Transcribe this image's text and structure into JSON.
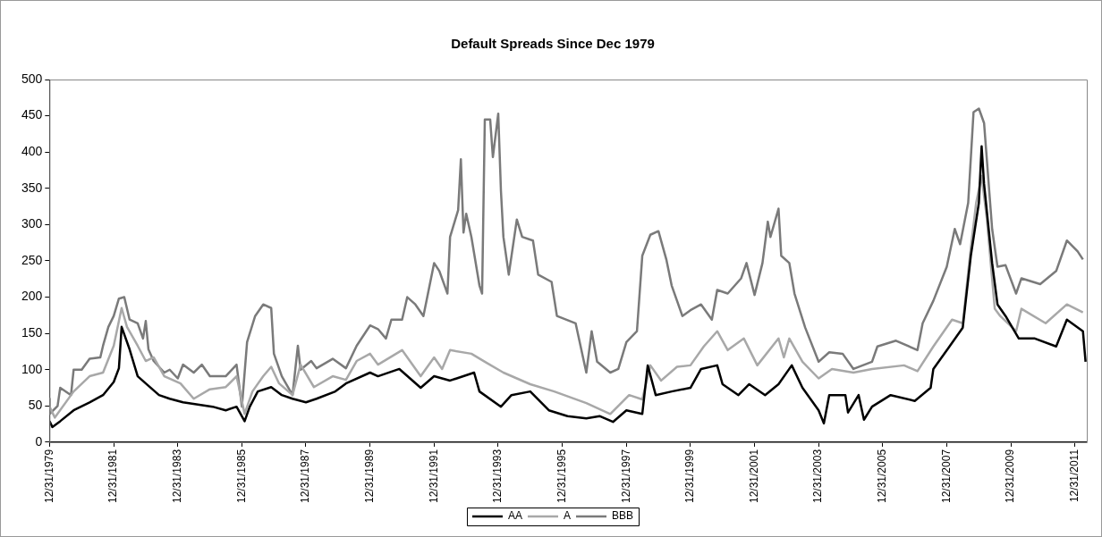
{
  "chart_data": {
    "type": "line",
    "title": "Default Spreads Since Dec 1979",
    "xlim": [
      "1979-12-31",
      "2012-05-15"
    ],
    "xticks": [
      {
        "value": "1979-12-31",
        "label": "12/31/1979"
      },
      {
        "value": "1981-12-31",
        "label": "12/31/1981"
      },
      {
        "value": "1983-12-31",
        "label": "12/31/1983"
      },
      {
        "value": "1985-12-31",
        "label": "12/31/1985"
      },
      {
        "value": "1987-12-31",
        "label": "12/31/1987"
      },
      {
        "value": "1989-12-31",
        "label": "12/31/1989"
      },
      {
        "value": "1991-12-31",
        "label": "12/31/1991"
      },
      {
        "value": "1993-12-31",
        "label": "12/31/1993"
      },
      {
        "value": "1995-12-31",
        "label": "12/31/1995"
      },
      {
        "value": "1997-12-31",
        "label": "12/31/1997"
      },
      {
        "value": "1999-12-31",
        "label": "12/31/1999"
      },
      {
        "value": "2001-12-31",
        "label": "12/31/2001"
      },
      {
        "value": "2003-12-31",
        "label": "12/31/2003"
      },
      {
        "value": "2005-12-31",
        "label": "12/31/2005"
      },
      {
        "value": "2007-12-31",
        "label": "12/31/2007"
      },
      {
        "value": "2009-12-31",
        "label": "12/31/2009"
      },
      {
        "value": "2011-12-31",
        "label": "12/31/2011"
      }
    ],
    "ylim": [
      0,
      500
    ],
    "yticks": [
      0,
      50,
      100,
      150,
      200,
      250,
      300,
      350,
      400,
      450,
      500
    ],
    "grid": false,
    "legend": "bottom",
    "marker": "none",
    "line_style": "solid",
    "series": [
      {
        "name": "AA",
        "color": "#000000",
        "x": [
          "1979-12-31",
          "1980-02",
          "1980-05",
          "1980-10",
          "1981-04",
          "1981-09",
          "1982-01",
          "1982-03",
          "1982-04",
          "1982-07",
          "1982-10",
          "1983-01",
          "1983-06",
          "1983-10",
          "1984-03",
          "1985-02",
          "1985-07",
          "1985-11",
          "1986-02",
          "1986-04",
          "1986-07",
          "1986-12",
          "1987-04",
          "1987-08",
          "1988-01",
          "1988-05",
          "1988-12",
          "1989-04",
          "1990-01",
          "1990-04",
          "1990-12",
          "1991-08",
          "1992-01",
          "1992-07",
          "1993-04",
          "1993-06",
          "1994-02",
          "1994-06",
          "1995-01",
          "1995-08",
          "1996-03",
          "1996-10",
          "1997-03",
          "1997-08",
          "1998-01",
          "1998-07",
          "1998-09",
          "1998-12",
          "1999-06",
          "2000-01",
          "2000-05",
          "2000-11",
          "2001-01",
          "2001-07",
          "2001-11",
          "2002-05",
          "2002-10",
          "2003-03",
          "2003-07",
          "2004-01",
          "2004-03",
          "2004-05",
          "2004-11",
          "2004-12",
          "2005-04",
          "2005-06",
          "2005-09",
          "2006-04",
          "2007-01",
          "2007-07",
          "2007-08",
          "2008-02",
          "2008-07",
          "2008-10",
          "2009-01",
          "2009-02",
          "2009-03",
          "2009-06",
          "2009-08",
          "2009-11",
          "2010-04",
          "2010-10",
          "2011-06",
          "2011-10",
          "2012-04",
          "2012-05"
        ],
        "values": [
          29,
          21,
          29,
          44,
          55,
          65,
          83,
          102,
          159,
          128,
          91,
          81,
          65,
          60,
          55,
          49,
          44,
          49,
          29,
          49,
          70,
          76,
          65,
          60,
          55,
          60,
          70,
          81,
          96,
          91,
          101,
          75,
          91,
          85,
          96,
          70,
          49,
          65,
          70,
          44,
          36,
          33,
          36,
          28,
          44,
          39,
          106,
          65,
          70,
          75,
          101,
          106,
          80,
          65,
          80,
          65,
          80,
          106,
          75,
          44,
          26,
          65,
          65,
          41,
          65,
          31,
          49,
          65,
          57,
          75,
          101,
          132,
          158,
          257,
          330,
          408,
          356,
          247,
          190,
          174,
          143,
          143,
          132,
          169,
          153,
          111
        ]
      },
      {
        "name": "A",
        "color": "#a8a8a8",
        "x": [
          "1979-12-31",
          "1980-03",
          "1980-10",
          "1981-04",
          "1981-09",
          "1982-01",
          "1982-04",
          "1982-06",
          "1982-10",
          "1983-01",
          "1983-04",
          "1983-08",
          "1984-02",
          "1984-07",
          "1985-01",
          "1985-07",
          "1985-11",
          "1986-02",
          "1986-05",
          "1986-09",
          "1986-12",
          "1987-03",
          "1987-08",
          "1987-11",
          "1988-04",
          "1988-11",
          "1989-04",
          "1989-08",
          "1990-01",
          "1990-04",
          "1991-01",
          "1991-08",
          "1992-01",
          "1992-04",
          "1992-07",
          "1993-03",
          "1993-08",
          "1994-03",
          "1995-01",
          "1995-10",
          "1996-10",
          "1997-07",
          "1998-02",
          "1998-07",
          "1998-10",
          "1999-02",
          "1999-08",
          "2000-01",
          "2000-06",
          "2000-11",
          "2001-03",
          "2001-09",
          "2002-02",
          "2002-10",
          "2002-12",
          "2003-02",
          "2003-07",
          "2004-01",
          "2004-06",
          "2005-02",
          "2005-09",
          "2006-09",
          "2007-02",
          "2007-08",
          "2008-03",
          "2008-07",
          "2008-10",
          "2008-12",
          "2009-02",
          "2009-04",
          "2009-07",
          "2009-09",
          "2010-03",
          "2010-05",
          "2011-02",
          "2011-10",
          "2012-04"
        ],
        "values": [
          49,
          34,
          70,
          91,
          96,
          133,
          185,
          159,
          133,
          112,
          117,
          91,
          81,
          60,
          73,
          76,
          91,
          39,
          70,
          91,
          104,
          81,
          65,
          107,
          76,
          91,
          86,
          112,
          122,
          107,
          127,
          91,
          117,
          101,
          127,
          122,
          111,
          96,
          80,
          70,
          54,
          39,
          65,
          59,
          106,
          85,
          104,
          106,
          132,
          153,
          127,
          143,
          106,
          143,
          117,
          143,
          111,
          88,
          101,
          96,
          101,
          106,
          98,
          132,
          169,
          164,
          268,
          330,
          367,
          309,
          184,
          174,
          153,
          184,
          164,
          190,
          179
        ]
      },
      {
        "name": "BBB",
        "color": "#7a7a7a",
        "x": [
          "1979-12-31",
          "1980-01",
          "1980-04",
          "1980-05",
          "1980-09",
          "1980-10",
          "1981-01",
          "1981-04",
          "1981-08",
          "1981-09",
          "1981-11",
          "1982-01",
          "1982-03",
          "1982-05",
          "1982-07",
          "1982-10",
          "1982-12",
          "1983-01",
          "1983-02",
          "1983-04",
          "1983-08",
          "1983-10",
          "1984-01",
          "1984-03",
          "1984-07",
          "1984-10",
          "1985-01",
          "1985-07",
          "1985-11",
          "1986-01",
          "1986-03",
          "1986-06",
          "1986-09",
          "1986-12",
          "1987-01",
          "1987-04",
          "1987-08",
          "1987-10",
          "1987-11",
          "1988-03",
          "1988-05",
          "1988-11",
          "1989-04",
          "1989-08",
          "1990-01",
          "1990-04",
          "1990-07",
          "1990-09",
          "1991-01",
          "1991-03",
          "1991-06",
          "1991-09",
          "1992-01",
          "1992-03",
          "1992-06",
          "1992-07",
          "1992-10",
          "1992-11",
          "1992-12",
          "1993-01",
          "1993-03",
          "1993-06",
          "1993-07",
          "1993-08",
          "1993-10",
          "1993-11",
          "1994-01",
          "1994-02",
          "1994-03",
          "1994-05",
          "1994-08",
          "1994-10",
          "1995-02",
          "1995-04",
          "1995-09",
          "1995-11",
          "1996-06",
          "1996-10",
          "1996-12",
          "1997-02",
          "1997-07",
          "1997-10",
          "1998-01",
          "1998-05",
          "1998-07",
          "1998-10",
          "1999-01",
          "1999-04",
          "1999-06",
          "1999-10",
          "2000-01",
          "2000-05",
          "2000-09",
          "2000-11",
          "2001-03",
          "2001-08",
          "2001-10",
          "2002-01",
          "2002-04",
          "2002-06",
          "2002-07",
          "2002-10",
          "2002-11",
          "2003-02",
          "2003-04",
          "2003-08",
          "2004-01",
          "2004-05",
          "2004-10",
          "2005-02",
          "2005-09",
          "2005-11",
          "2006-06",
          "2007-02",
          "2007-04",
          "2007-08",
          "2008-01",
          "2008-04",
          "2008-06",
          "2008-09",
          "2008-11",
          "2009-01",
          "2009-03",
          "2009-06",
          "2009-08",
          "2009-11",
          "2010-03",
          "2010-05",
          "2010-12",
          "2011-06",
          "2011-10",
          "2012-02",
          "2012-04"
        ],
        "values": [
          60,
          39,
          50,
          75,
          65,
          100,
          100,
          115,
          117,
          133,
          159,
          174,
          198,
          200,
          169,
          164,
          143,
          167,
          128,
          112,
          96,
          100,
          88,
          107,
          96,
          107,
          91,
          91,
          107,
          49,
          138,
          174,
          190,
          185,
          122,
          91,
          65,
          133,
          100,
          112,
          102,
          115,
          102,
          133,
          161,
          156,
          143,
          169,
          169,
          200,
          190,
          174,
          247,
          236,
          205,
          283,
          320,
          390,
          289,
          315,
          283,
          216,
          205,
          445,
          445,
          393,
          453,
          346,
          283,
          231,
          307,
          283,
          278,
          231,
          221,
          174,
          164,
          96,
          153,
          111,
          96,
          101,
          138,
          153,
          257,
          286,
          291,
          252,
          216,
          174,
          182,
          190,
          169,
          210,
          205,
          226,
          247,
          203,
          247,
          304,
          283,
          322,
          257,
          247,
          205,
          158,
          111,
          124,
          122,
          101,
          111,
          132,
          140,
          127,
          164,
          195,
          242,
          294,
          273,
          330,
          455,
          460,
          440,
          294,
          242,
          244,
          205,
          226,
          218,
          236,
          278,
          263,
          252
        ]
      }
    ]
  }
}
